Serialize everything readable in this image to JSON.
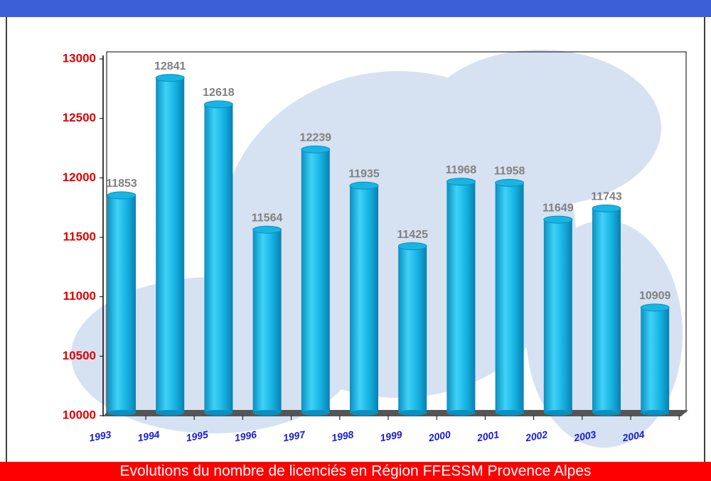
{
  "chart_data": {
    "type": "bar",
    "title": "Evolutions du nombre de licenciés en Région FFESSM Provence Alpes",
    "categories": [
      "1993",
      "1994",
      "1995",
      "1996",
      "1997",
      "1998",
      "1999",
      "2000",
      "2001",
      "2002",
      "2003",
      "2004"
    ],
    "values": [
      11853,
      12841,
      12618,
      11564,
      12239,
      11935,
      11425,
      11968,
      11958,
      11649,
      11743,
      10909
    ],
    "color": "#18b4e4",
    "ylim": [
      10000,
      13000
    ],
    "yticks": [
      10000,
      10500,
      11000,
      11500,
      12000,
      12500,
      13000
    ]
  }
}
